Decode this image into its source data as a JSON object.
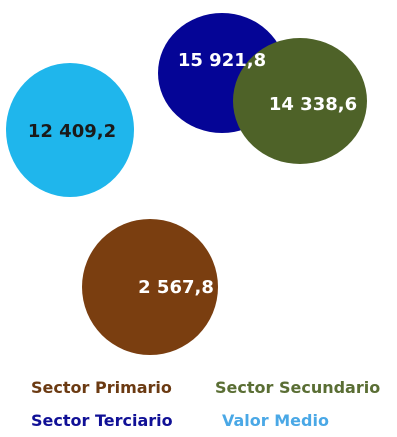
{
  "chart_data": {
    "type": "bubble",
    "title": "",
    "series": [
      {
        "name": "Sector Primario",
        "value": 2567.8,
        "label": "2 567,8",
        "color": "#7a3e10",
        "label_color": "#ffffff"
      },
      {
        "name": "Sector Secundario",
        "value": 14338.6,
        "label": "14 338,6",
        "color": "#4e6228",
        "label_color": "#ffffff"
      },
      {
        "name": "Sector Terciario",
        "value": 15921.8,
        "label": "15 921,8",
        "color": "#050596",
        "label_color": "#ffffff"
      },
      {
        "name": "Valor Medio",
        "value": 12409.2,
        "label": "12 409,2",
        "color": "#1fb6ec",
        "label_color": "#1a1a1a"
      }
    ],
    "legend": {
      "placement": "bottom",
      "items": [
        {
          "name": "Sector Primario",
          "color": "#6b3a12"
        },
        {
          "name": "Sector Secundario",
          "color": "#5a6e34"
        },
        {
          "name": "Sector Terciario",
          "color": "#101096"
        },
        {
          "name": "Valor Medio",
          "color": "#4aa8e6"
        }
      ]
    }
  }
}
